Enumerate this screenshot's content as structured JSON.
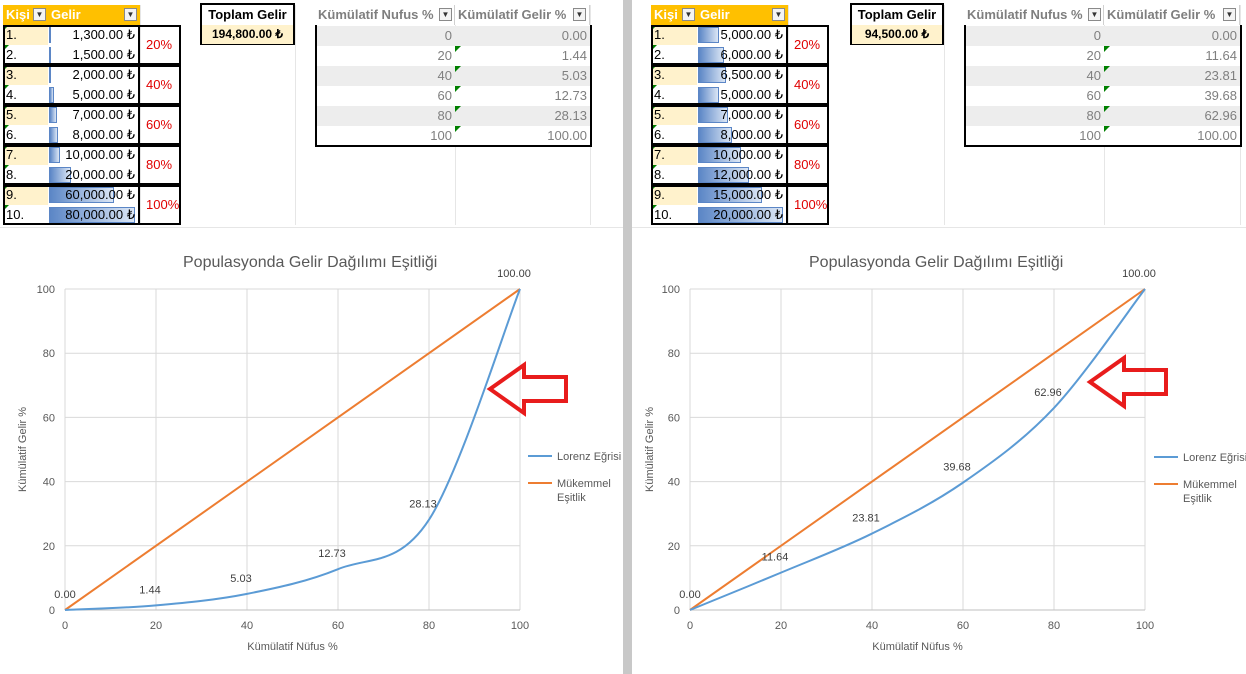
{
  "colors": {
    "header_gold": "#ffc000",
    "lorenz": "#5b9bd5",
    "equality": "#ed7d31",
    "arrow": "#e81c1c",
    "pct_red": "#e00000"
  },
  "left": {
    "headers": {
      "kisi": "Kişi",
      "gelir": "Gelir",
      "toplam_gelir": "Toplam Gelir",
      "kum_nufus": "Kümülatif Nufus %",
      "kum_gelir": "Kümülatif Gelir %"
    },
    "total": "194,800.00 ₺",
    "rows": [
      {
        "idx": "1.",
        "amount": "1,300.00 ₺",
        "share": 0.016
      },
      {
        "idx": "2.",
        "amount": "1,500.00 ₺",
        "share": 0.019
      },
      {
        "idx": "3.",
        "amount": "2,000.00 ₺",
        "share": 0.025
      },
      {
        "idx": "4.",
        "amount": "5,000.00 ₺",
        "share": 0.063
      },
      {
        "idx": "5.",
        "amount": "7,000.00 ₺",
        "share": 0.088
      },
      {
        "idx": "6.",
        "amount": "8,000.00 ₺",
        "share": 0.1
      },
      {
        "idx": "7.",
        "amount": "10,000.00 ₺",
        "share": 0.125
      },
      {
        "idx": "8.",
        "amount": "20,000.00 ₺",
        "share": 0.25
      },
      {
        "idx": "9.",
        "amount": "60,000.00 ₺",
        "share": 0.75
      },
      {
        "idx": "10.",
        "amount": "80,000.00 ₺",
        "share": 1.0
      }
    ],
    "pct_labels": [
      "20%",
      "40%",
      "60%",
      "80%",
      "100%"
    ],
    "cumulative": [
      {
        "pop": "0",
        "inc": "0.00"
      },
      {
        "pop": "20",
        "inc": "1.44"
      },
      {
        "pop": "40",
        "inc": "5.03"
      },
      {
        "pop": "60",
        "inc": "12.73"
      },
      {
        "pop": "80",
        "inc": "28.13"
      },
      {
        "pop": "100",
        "inc": "100.00"
      }
    ]
  },
  "right": {
    "headers": {
      "kisi": "Kişi",
      "gelir": "Gelir",
      "toplam_gelir": "Toplam Gelir",
      "kum_nufus": "Kümülatif Nufus %",
      "kum_gelir": "Kümülatif Gelir %"
    },
    "total": "94,500.00 ₺",
    "rows": [
      {
        "idx": "1.",
        "amount": "5,000.00 ₺",
        "share": 0.25
      },
      {
        "idx": "2.",
        "amount": "6,000.00 ₺",
        "share": 0.3
      },
      {
        "idx": "3.",
        "amount": "6,500.00 ₺",
        "share": 0.325
      },
      {
        "idx": "4.",
        "amount": "5,000.00 ₺",
        "share": 0.25
      },
      {
        "idx": "5.",
        "amount": "7,000.00 ₺",
        "share": 0.35
      },
      {
        "idx": "6.",
        "amount": "8,000.00 ₺",
        "share": 0.4
      },
      {
        "idx": "7.",
        "amount": "10,000.00 ₺",
        "share": 0.5
      },
      {
        "idx": "8.",
        "amount": "12,000.00 ₺",
        "share": 0.6
      },
      {
        "idx": "9.",
        "amount": "15,000.00 ₺",
        "share": 0.75
      },
      {
        "idx": "10.",
        "amount": "20,000.00 ₺",
        "share": 1.0
      }
    ],
    "pct_labels": [
      "20%",
      "40%",
      "60%",
      "80%",
      "100%"
    ],
    "cumulative": [
      {
        "pop": "0",
        "inc": "0.00"
      },
      {
        "pop": "20",
        "inc": "11.64"
      },
      {
        "pop": "40",
        "inc": "23.81"
      },
      {
        "pop": "60",
        "inc": "39.68"
      },
      {
        "pop": "80",
        "inc": "62.96"
      },
      {
        "pop": "100",
        "inc": "100.00"
      }
    ]
  },
  "chart_data": [
    {
      "type": "line",
      "title": "Populasyonda Gelir Dağılımı Eşitliği",
      "xlabel": "Kümülatif Nüfus %",
      "ylabel": "Kümülatif Gelir %",
      "xlim": [
        0,
        100
      ],
      "ylim": [
        0,
        100
      ],
      "xticks": [
        "0",
        "20",
        "40",
        "60",
        "80",
        "100"
      ],
      "yticks": [
        "0",
        "20",
        "40",
        "60",
        "80",
        "100"
      ],
      "legend_position": "right",
      "series": [
        {
          "name": "Lorenz Eğrisi",
          "x": [
            0,
            20,
            40,
            60,
            80,
            100
          ],
          "y": [
            0,
            1.44,
            5.03,
            12.73,
            28.13,
            100
          ],
          "labels": [
            "0.00",
            "1.44",
            "5.03",
            "12.73",
            "28.13",
            "100.00"
          ]
        },
        {
          "name": "Mükemmel Eşitlik",
          "x": [
            0,
            100
          ],
          "y": [
            0,
            100
          ]
        }
      ],
      "annotation": "red-arrow pointing at curve"
    },
    {
      "type": "line",
      "title": "Populasyonda Gelir Dağılımı Eşitliği",
      "xlabel": "Kümülatif Nüfus %",
      "ylabel": "Kümülatif Gelir %",
      "xlim": [
        0,
        100
      ],
      "ylim": [
        0,
        100
      ],
      "xticks": [
        "0",
        "20",
        "40",
        "60",
        "80",
        "100"
      ],
      "yticks": [
        "0",
        "20",
        "40",
        "60",
        "80",
        "100"
      ],
      "legend_position": "right",
      "series": [
        {
          "name": "Lorenz Eğrisi",
          "x": [
            0,
            20,
            40,
            60,
            80,
            100
          ],
          "y": [
            0,
            11.64,
            23.81,
            39.68,
            62.96,
            100
          ],
          "labels": [
            "0.00",
            "11.64",
            "23.81",
            "39.68",
            "62.96",
            "100.00"
          ]
        },
        {
          "name": "Mükemmel Eşitlik",
          "x": [
            0,
            100
          ],
          "y": [
            0,
            100
          ]
        }
      ],
      "annotation": "red-arrow pointing at curve"
    }
  ]
}
